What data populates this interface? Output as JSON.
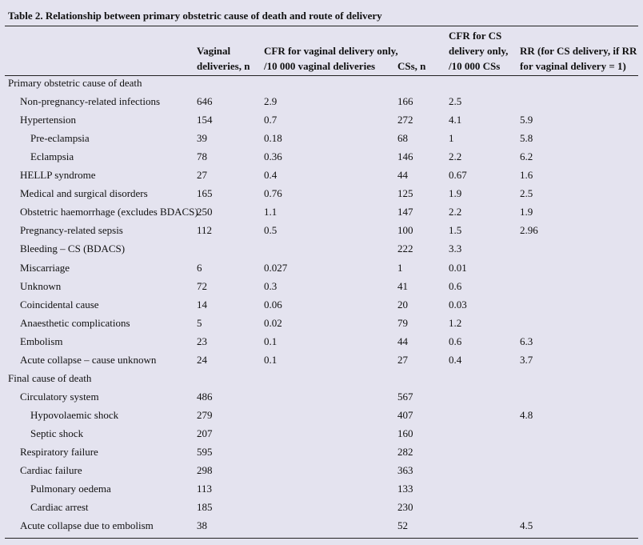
{
  "table": {
    "title": "Table 2. Relationship between primary obstetric cause of death and route of delivery",
    "columns": [
      [
        "Vaginal",
        "deliveries, n"
      ],
      [
        "CFR for vaginal delivery only,",
        "/10 000 vaginal deliveries"
      ],
      [
        "CSs, n"
      ],
      [
        "CFR for CS",
        "delivery only,",
        "/10 000 CSs"
      ],
      [
        "RR (for CS delivery, if RR",
        "for vaginal delivery = 1)"
      ]
    ],
    "sections": [
      {
        "heading": "Primary obstetric cause of death",
        "rows": [
          {
            "label": "Non-pregnancy-related infections",
            "cells": [
              "646",
              "2.9",
              "166",
              "2.5",
              null
            ]
          },
          {
            "label": "Hypertension",
            "cells": [
              "154",
              "0.7",
              "272",
              "4.1",
              "5.9"
            ],
            "subrows": [
              {
                "label": "Pre-eclampsia",
                "cells": [
                  "39",
                  "0.18",
                  "68",
                  "1",
                  "5.8"
                ]
              },
              {
                "label": "Eclampsia",
                "cells": [
                  "78",
                  "0.36",
                  "146",
                  "2.2",
                  "6.2"
                ]
              }
            ]
          },
          {
            "label": "HELLP syndrome",
            "cells": [
              "27",
              "0.4",
              "44",
              "0.67",
              "1.6"
            ]
          },
          {
            "label": "Medical and surgical disorders",
            "cells": [
              "165",
              "0.76",
              "125",
              "1.9",
              "2.5"
            ]
          },
          {
            "label": "Obstetric haemorrhage (excludes BDACS)",
            "cells": [
              "250",
              "1.1",
              "147",
              "2.2",
              "1.9"
            ]
          },
          {
            "label": "Pregnancy-related sepsis",
            "cells": [
              "112",
              "0.5",
              "100",
              "1.5",
              "2.96"
            ]
          },
          {
            "label": "Bleeding – CS (BDACS)",
            "cells": [
              null,
              null,
              "222",
              "3.3",
              null
            ]
          },
          {
            "label": "Miscarriage",
            "cells": [
              "6",
              "0.027",
              "1",
              "0.01",
              null
            ]
          },
          {
            "label": "Unknown",
            "cells": [
              "72",
              "0.3",
              "41",
              "0.6",
              null
            ]
          },
          {
            "label": "Coincidental cause",
            "cells": [
              "14",
              "0.06",
              "20",
              "0.03",
              null
            ]
          },
          {
            "label": "Anaesthetic complications",
            "cells": [
              "5",
              "0.02",
              "79",
              "1.2",
              null
            ]
          },
          {
            "label": "Embolism",
            "cells": [
              "23",
              "0.1",
              "44",
              "0.6",
              "6.3"
            ]
          },
          {
            "label": "Acute collapse – cause unknown",
            "cells": [
              "24",
              "0.1",
              "27",
              "0.4",
              "3.7"
            ]
          }
        ]
      },
      {
        "heading": "Final cause of death",
        "rows": [
          {
            "label": "Circulatory system",
            "cells": [
              "486",
              null,
              "567",
              null,
              null
            ],
            "subrows": [
              {
                "label": "Hypovolaemic shock",
                "cells": [
                  "279",
                  null,
                  "407",
                  null,
                  "4.8"
                ]
              },
              {
                "label": "Septic shock",
                "cells": [
                  "207",
                  null,
                  "160",
                  null,
                  null
                ]
              }
            ]
          },
          {
            "label": "Respiratory failure",
            "cells": [
              "595",
              null,
              "282",
              null,
              null
            ]
          },
          {
            "label": "Cardiac failure",
            "cells": [
              "298",
              null,
              "363",
              null,
              null
            ],
            "subrows": [
              {
                "label": "Pulmonary oedema",
                "cells": [
                  "113",
                  null,
                  "133",
                  null,
                  null
                ]
              },
              {
                "label": "Cardiac arrest",
                "cells": [
                  "185",
                  null,
                  "230",
                  null,
                  null
                ]
              }
            ]
          },
          {
            "label": "Acute collapse due to embolism",
            "cells": [
              "38",
              null,
              "52",
              null,
              "4.5"
            ]
          }
        ]
      }
    ]
  }
}
